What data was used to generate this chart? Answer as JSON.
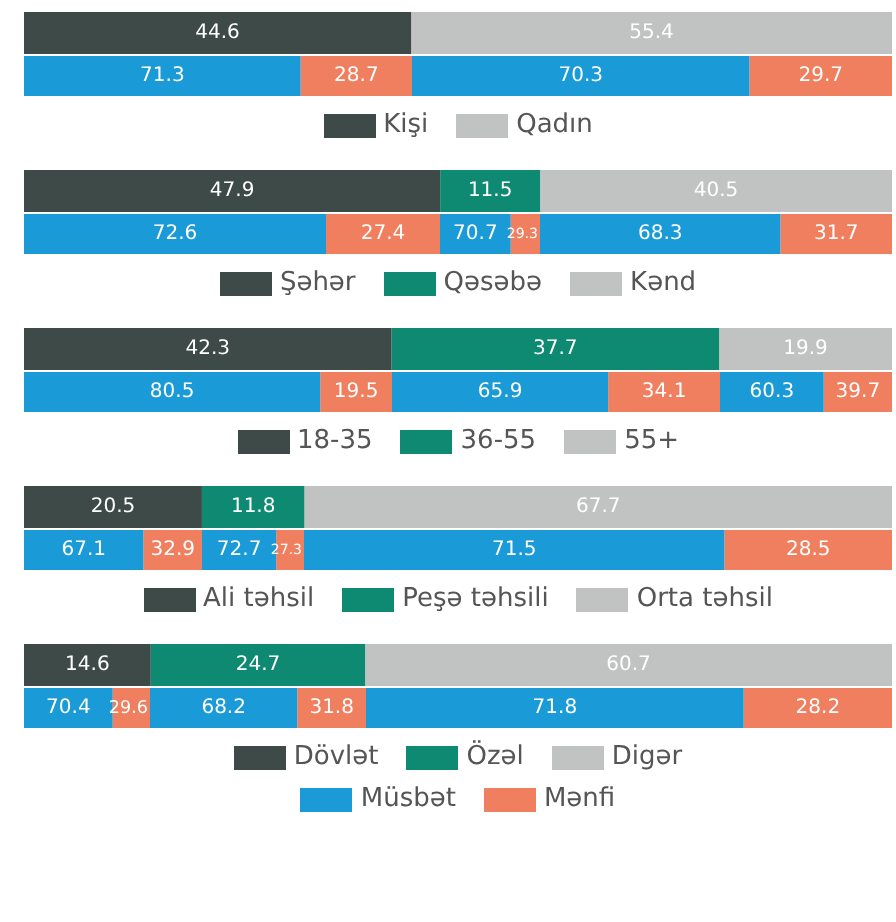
{
  "chart_data": [
    {
      "type": "bar",
      "orientation": "horizontal",
      "stacked": true,
      "categories": [
        null
      ],
      "legend": "bottom",
      "tick_labels": false,
      "grid": false,
      "data_labels": true,
      "series": [
        {
          "name": "Kişi",
          "color": "#3d4a47",
          "values": [
            44.6
          ]
        },
        {
          "name": "Qadın",
          "color": "#c0c3c2",
          "values": [
            55.4
          ]
        }
      ]
    },
    {
      "type": "bar",
      "orientation": "horizontal",
      "stacked": true,
      "categories": [
        null
      ],
      "tick_labels": false,
      "grid": false,
      "data_labels": true,
      "series": [
        {
          "color": "#1a9ad6",
          "values": [
            71.3
          ]
        },
        {
          "color": "#f07f5f",
          "values": [
            28.7
          ]
        }
      ]
    },
    {
      "type": "bar",
      "orientation": "horizontal",
      "stacked": true,
      "categories": [
        null
      ],
      "tick_labels": false,
      "grid": false,
      "data_labels": true,
      "series": [
        {
          "color": "#1a9ad6",
          "values": [
            70.3
          ]
        },
        {
          "color": "#f07f5f",
          "values": [
            29.7
          ]
        }
      ]
    },
    {
      "type": "bar",
      "orientation": "horizontal",
      "stacked": true,
      "categories": [
        null
      ],
      "legend": "bottom",
      "tick_labels": false,
      "grid": false,
      "data_labels": true,
      "series": [
        {
          "name": "Şəhər",
          "color": "#3d4a47",
          "values": [
            47.9
          ]
        },
        {
          "name": "Qəsəbə",
          "color": "#0f8a72",
          "values": [
            11.5
          ]
        },
        {
          "name": "Kənd",
          "color": "#c0c3c2",
          "values": [
            40.5
          ]
        }
      ]
    },
    {
      "type": "bar",
      "orientation": "horizontal",
      "stacked": true,
      "categories": [
        null
      ],
      "tick_labels": false,
      "grid": false,
      "data_labels": true,
      "series": [
        {
          "color": "#1a9ad6",
          "values": [
            72.6
          ]
        },
        {
          "color": "#f07f5f",
          "values": [
            27.4
          ]
        }
      ]
    },
    {
      "type": "bar",
      "orientation": "horizontal",
      "stacked": true,
      "categories": [
        null
      ],
      "tick_labels": false,
      "grid": false,
      "data_labels": true,
      "series": [
        {
          "color": "#1a9ad6",
          "values": [
            70.7
          ]
        },
        {
          "color": "#f07f5f",
          "values": [
            29.3
          ]
        }
      ]
    },
    {
      "type": "bar",
      "orientation": "horizontal",
      "stacked": true,
      "categories": [
        null
      ],
      "tick_labels": false,
      "grid": false,
      "data_labels": true,
      "series": [
        {
          "color": "#1a9ad6",
          "values": [
            68.3
          ]
        },
        {
          "color": "#f07f5f",
          "values": [
            31.7
          ]
        }
      ]
    },
    {
      "type": "bar",
      "orientation": "horizontal",
      "stacked": true,
      "categories": [
        null
      ],
      "legend": "bottom",
      "tick_labels": false,
      "grid": false,
      "data_labels": true,
      "series": [
        {
          "name": "18-35",
          "color": "#3d4a47",
          "values": [
            42.3
          ]
        },
        {
          "name": "36-55",
          "color": "#0f8a72",
          "values": [
            37.7
          ]
        },
        {
          "name": "55+",
          "color": "#c0c3c2",
          "values": [
            19.9
          ]
        }
      ]
    },
    {
      "type": "bar",
      "orientation": "horizontal",
      "stacked": true,
      "categories": [
        null
      ],
      "tick_labels": false,
      "grid": false,
      "data_labels": true,
      "series": [
        {
          "color": "#1a9ad6",
          "values": [
            80.5
          ]
        },
        {
          "color": "#f07f5f",
          "values": [
            19.5
          ]
        }
      ]
    },
    {
      "type": "bar",
      "orientation": "horizontal",
      "stacked": true,
      "categories": [
        null
      ],
      "tick_labels": false,
      "grid": false,
      "data_labels": true,
      "series": [
        {
          "color": "#1a9ad6",
          "values": [
            65.9
          ]
        },
        {
          "color": "#f07f5f",
          "values": [
            34.1
          ]
        }
      ]
    },
    {
      "type": "bar",
      "orientation": "horizontal",
      "stacked": true,
      "categories": [
        null
      ],
      "tick_labels": false,
      "grid": false,
      "data_labels": true,
      "series": [
        {
          "color": "#1a9ad6",
          "values": [
            60.3
          ]
        },
        {
          "color": "#f07f5f",
          "values": [
            39.7
          ]
        }
      ]
    },
    {
      "type": "bar",
      "orientation": "horizontal",
      "stacked": true,
      "categories": [
        null
      ],
      "legend": "bottom",
      "tick_labels": false,
      "grid": false,
      "data_labels": true,
      "series": [
        {
          "name": "Ali təhsil",
          "color": "#3d4a47",
          "values": [
            20.5
          ]
        },
        {
          "name": "Peşə təhsili",
          "color": "#0f8a72",
          "values": [
            11.8
          ]
        },
        {
          "name": "Orta təhsil",
          "color": "#c0c3c2",
          "values": [
            67.7
          ]
        }
      ]
    },
    {
      "type": "bar",
      "orientation": "horizontal",
      "stacked": true,
      "categories": [
        null
      ],
      "tick_labels": false,
      "grid": false,
      "data_labels": true,
      "series": [
        {
          "color": "#1a9ad6",
          "values": [
            67.1
          ]
        },
        {
          "color": "#f07f5f",
          "values": [
            32.9
          ]
        }
      ]
    },
    {
      "type": "bar",
      "orientation": "horizontal",
      "stacked": true,
      "categories": [
        null
      ],
      "tick_labels": false,
      "grid": false,
      "data_labels": true,
      "series": [
        {
          "color": "#1a9ad6",
          "values": [
            72.7
          ]
        },
        {
          "color": "#f07f5f",
          "values": [
            27.3
          ]
        }
      ]
    },
    {
      "type": "bar",
      "orientation": "horizontal",
      "stacked": true,
      "categories": [
        null
      ],
      "tick_labels": false,
      "grid": false,
      "data_labels": true,
      "series": [
        {
          "color": "#1a9ad6",
          "values": [
            71.5
          ]
        },
        {
          "color": "#f07f5f",
          "values": [
            28.5
          ]
        }
      ]
    },
    {
      "type": "bar",
      "orientation": "horizontal",
      "stacked": true,
      "categories": [
        null
      ],
      "legend": "bottom",
      "tick_labels": false,
      "grid": false,
      "data_labels": true,
      "series": [
        {
          "name": "Dövlət",
          "color": "#3d4a47",
          "values": [
            14.6
          ]
        },
        {
          "name": "Özəl",
          "color": "#0f8a72",
          "values": [
            24.7
          ]
        },
        {
          "name": "Digər",
          "color": "#c0c3c2",
          "values": [
            60.7
          ]
        }
      ]
    },
    {
      "type": "bar",
      "orientation": "horizontal",
      "stacked": true,
      "categories": [
        null
      ],
      "legend": "bottom",
      "tick_labels": false,
      "grid": false,
      "data_labels": true,
      "series": [
        {
          "name": "Müsbət",
          "color": "#1a9ad6",
          "values": [
            70.4
          ]
        },
        {
          "name": "Mənfi",
          "color": "#f07f5f",
          "values": [
            29.6
          ]
        }
      ]
    },
    {
      "type": "bar",
      "orientation": "horizontal",
      "stacked": true,
      "categories": [
        null
      ],
      "tick_labels": false,
      "grid": false,
      "data_labels": true,
      "series": [
        {
          "color": "#1a9ad6",
          "values": [
            68.2
          ]
        },
        {
          "color": "#f07f5f",
          "values": [
            31.8
          ]
        }
      ]
    },
    {
      "type": "bar",
      "orientation": "horizontal",
      "stacked": true,
      "categories": [
        null
      ],
      "tick_labels": false,
      "grid": false,
      "data_labels": true,
      "series": [
        {
          "color": "#1a9ad6",
          "values": [
            71.8
          ]
        },
        {
          "color": "#f07f5f",
          "values": [
            28.2
          ]
        }
      ]
    }
  ]
}
